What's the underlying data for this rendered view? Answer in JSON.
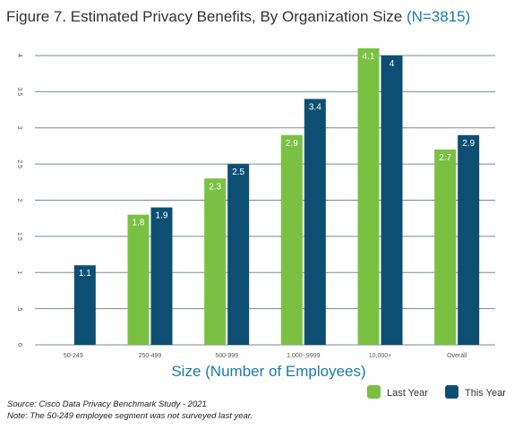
{
  "title": "Figure 7. Estimated Privacy Benefits, By Organization Size",
  "title_n": "(N=3815)",
  "source": "Source: Cisco Data Privacy Benchmark Study - 2021",
  "note": "Note: The 50-249 employee segment was not surveyed last year.",
  "chart_data": {
    "type": "bar",
    "title": "Figure 7. Estimated Privacy Benefits, By Organization Size (N=3815)",
    "xlabel": "Size (Number of Employees)",
    "ylabel": "",
    "ylim": [
      0,
      4
    ],
    "yticks": [
      "0",
      ".5",
      "1",
      "1.5",
      "2",
      "2.5",
      "3",
      "3.5",
      "4"
    ],
    "grid": true,
    "legend": "bottom-right",
    "categories": [
      "50-249",
      "250-499",
      "500-999",
      "1,000-,9999",
      "10,000+",
      "Overall"
    ],
    "series": [
      {
        "name": "Last Year",
        "color": "#7ac143",
        "values": [
          null,
          1.8,
          2.3,
          2.9,
          4.1,
          2.7
        ],
        "labels": [
          "",
          "1.8",
          "2.3",
          "2.9",
          "4.1",
          "2.7"
        ]
      },
      {
        "name": "This Year",
        "color": "#0d4f73",
        "values": [
          1.1,
          1.9,
          2.5,
          3.4,
          4.0,
          2.9
        ],
        "labels": [
          "1.1",
          "1.9",
          "2.5",
          "3.4",
          "4",
          "2.9"
        ]
      }
    ]
  }
}
